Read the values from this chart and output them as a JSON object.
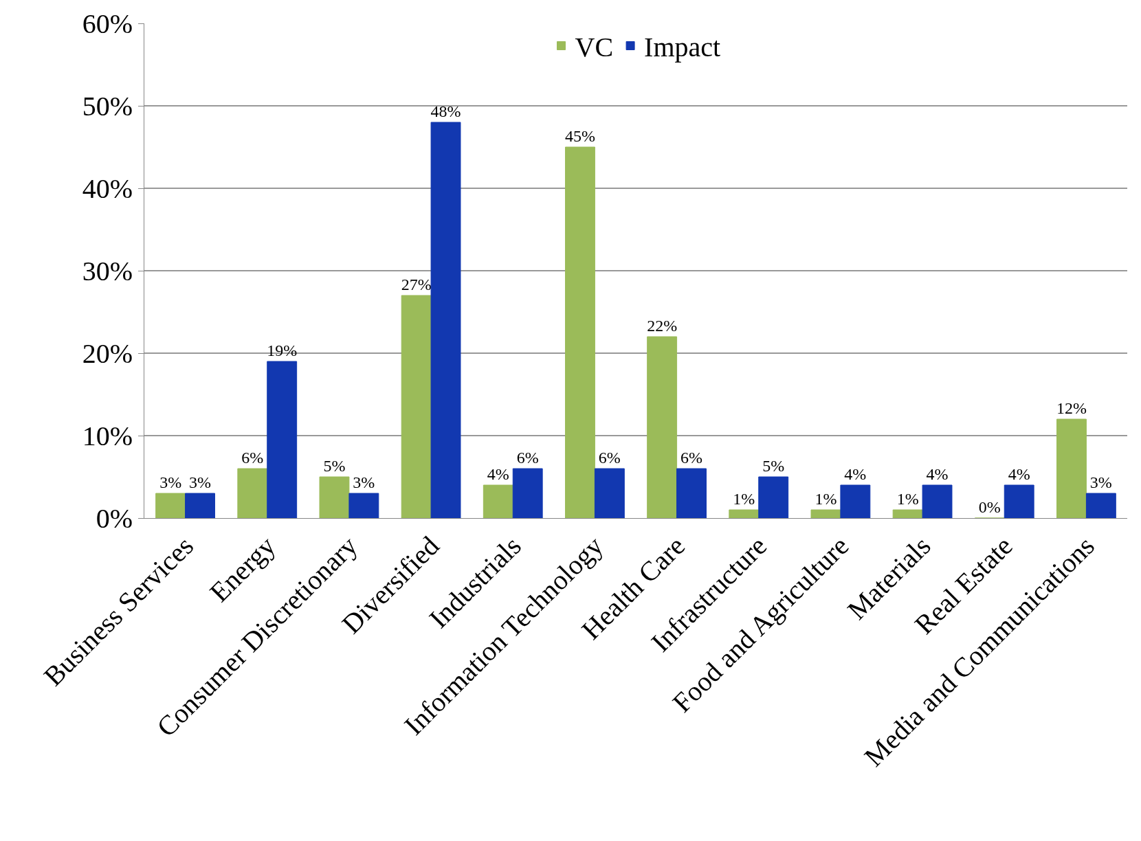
{
  "chart_data": {
    "type": "bar",
    "categories": [
      "Business Services",
      "Energy",
      "Consumer Discretionary",
      "Diversified",
      "Industrials",
      "Information Technology",
      "Health Care",
      "Infrastructure",
      "Food and Agriculture",
      "Materials",
      "Real Estate",
      "Media and Communications"
    ],
    "series": [
      {
        "name": "VC",
        "color": "#9bbb59",
        "values": [
          3,
          6,
          5,
          27,
          4,
          45,
          22,
          1,
          1,
          1,
          0,
          12
        ],
        "value_labels": [
          "3%",
          "6%",
          "5%",
          "27%",
          "4%",
          "45%",
          "22%",
          "1%",
          "1%",
          "1%",
          "0%",
          "12%"
        ]
      },
      {
        "name": "Impact",
        "color": "#1238b0",
        "values": [
          3,
          19,
          3,
          48,
          6,
          6,
          6,
          5,
          4,
          4,
          4,
          3
        ],
        "value_labels": [
          "3%",
          "19%",
          "3%",
          "48%",
          "6%",
          "6%",
          "6%",
          "5%",
          "4%",
          "4%",
          "4%",
          "3%"
        ]
      }
    ],
    "ylim": [
      0,
      60
    ],
    "yticks": [
      {
        "value": 0,
        "label": "0%"
      },
      {
        "value": 10,
        "label": "10%"
      },
      {
        "value": 20,
        "label": "20%"
      },
      {
        "value": 30,
        "label": "30%"
      },
      {
        "value": 40,
        "label": "40%"
      },
      {
        "value": 50,
        "label": "50%"
      },
      {
        "value": 60,
        "label": "60%"
      }
    ],
    "grid": "y",
    "legend": "top"
  }
}
